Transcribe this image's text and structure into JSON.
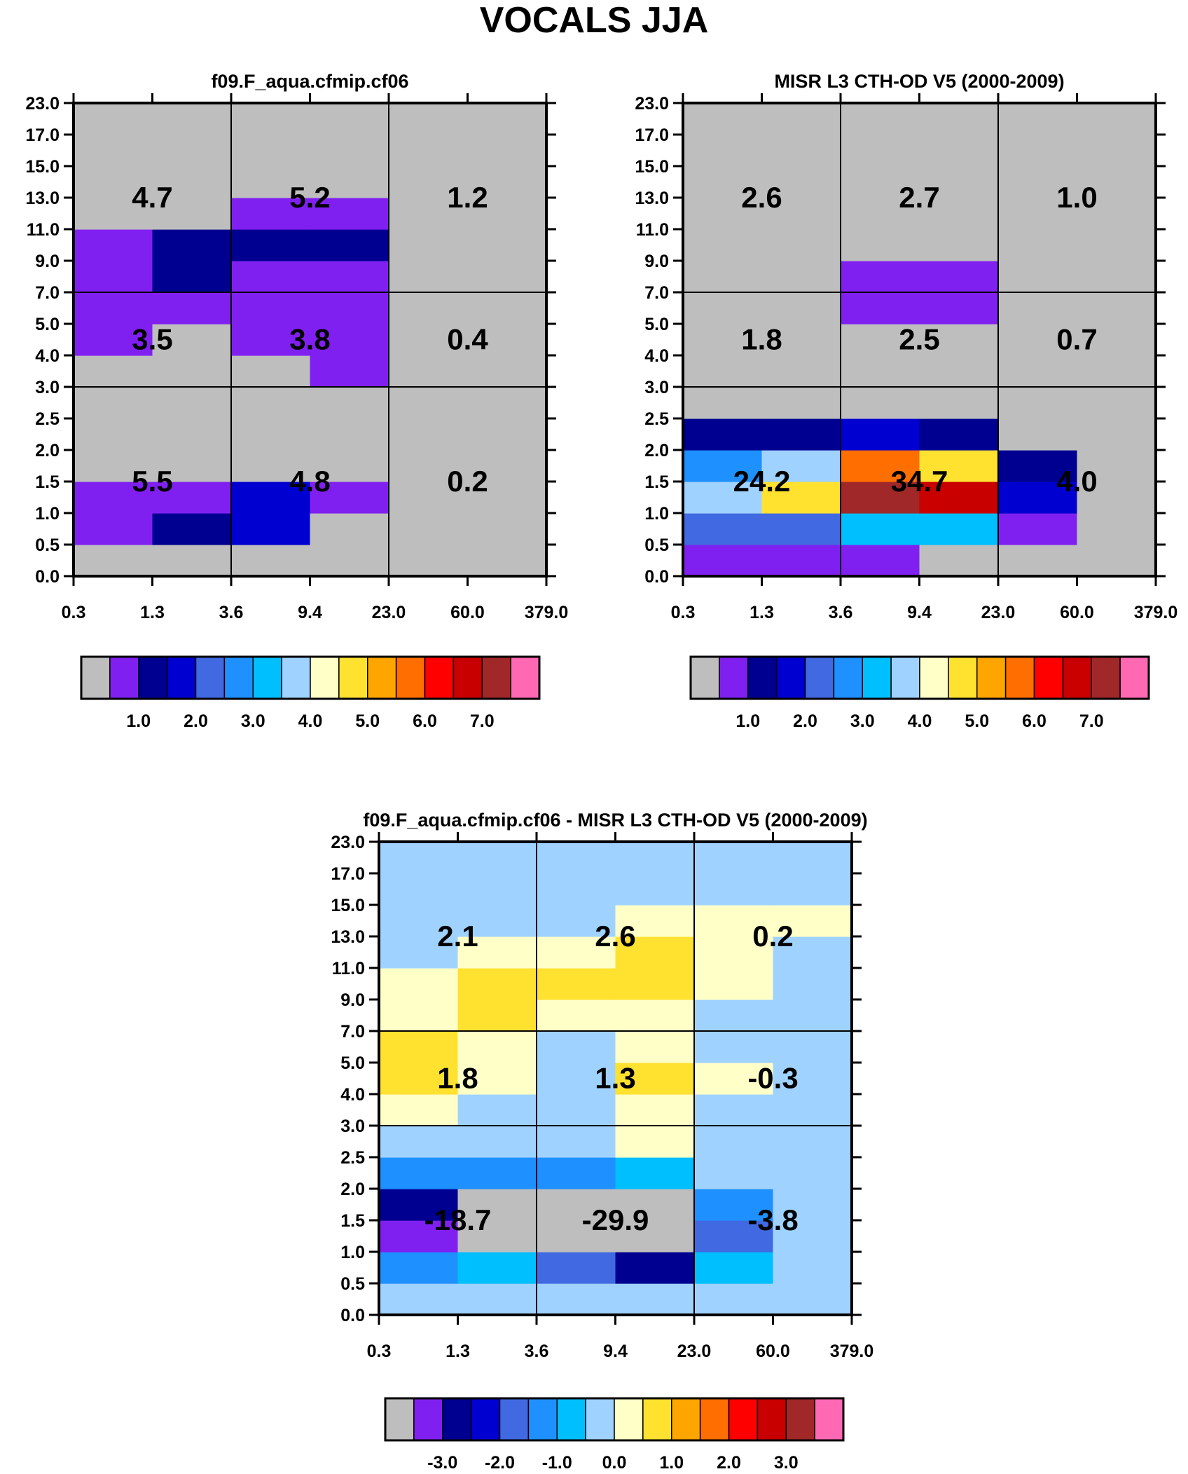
{
  "title": "VOCALS JJA",
  "colors": {
    "cbar_main": [
      "#bebebe",
      "#8020f0",
      "#000090",
      "#0000d0",
      "#4169e1",
      "#1e90ff",
      "#00bfff",
      "#a0d2ff",
      "#ffffc8",
      "#ffe130",
      "#ffa500",
      "#ff6e00",
      "#ff0000",
      "#c80000",
      "#a02828",
      "#ff69b4"
    ],
    "cbar_diff": [
      "#bebebe",
      "#8020f0",
      "#000090",
      "#0000d0",
      "#4169e1",
      "#1e90ff",
      "#00bfff",
      "#a0d2ff",
      "#ffffc8",
      "#ffe130",
      "#ffa500",
      "#ff6e00",
      "#ff0000",
      "#c80000",
      "#a02828",
      "#ff69b4"
    ]
  },
  "chart_data": [
    {
      "type": "heatmap",
      "title": "f09.F_aqua.cfmip.cf06",
      "x_tick_labels": [
        "0.3",
        "1.3",
        "3.6",
        "9.4",
        "23.0",
        "60.0",
        "379.0"
      ],
      "y_tick_labels": [
        "0.0",
        "0.5",
        "1.0",
        "1.5",
        "2.0",
        "2.5",
        "3.0",
        "4.0",
        "5.0",
        "7.0",
        "9.0",
        "11.0",
        "13.0",
        "15.0",
        "17.0",
        "23.0"
      ],
      "cells_note": "rows listed bottom (0.0-0.5) to top (17.0-23.0); values are color-bin indices into colors.cbar_main",
      "cells": [
        [
          0,
          0,
          0,
          0,
          0,
          0
        ],
        [
          1,
          2,
          3,
          0,
          0,
          0
        ],
        [
          1,
          1,
          3,
          1,
          0,
          0
        ],
        [
          0,
          0,
          0,
          0,
          0,
          0
        ],
        [
          0,
          0,
          0,
          0,
          0,
          0
        ],
        [
          0,
          0,
          0,
          0,
          0,
          0
        ],
        [
          0,
          0,
          0,
          1,
          0,
          0
        ],
        [
          1,
          0,
          1,
          1,
          0,
          0
        ],
        [
          1,
          1,
          1,
          1,
          0,
          0
        ],
        [
          1,
          2,
          1,
          1,
          0,
          0
        ],
        [
          1,
          2,
          2,
          2,
          0,
          0
        ],
        [
          0,
          0,
          1,
          1,
          0,
          0
        ],
        [
          0,
          0,
          0,
          0,
          0,
          0
        ],
        [
          0,
          0,
          0,
          0,
          0,
          0
        ],
        [
          0,
          0,
          0,
          0,
          0,
          0
        ]
      ],
      "annotations": [
        {
          "label": "4.7",
          "col": 0,
          "row": 0
        },
        {
          "label": "5.2",
          "col": 1,
          "row": 0
        },
        {
          "label": "1.2",
          "col": 2,
          "row": 0
        },
        {
          "label": "3.5",
          "col": 0,
          "row": 1
        },
        {
          "label": "3.8",
          "col": 1,
          "row": 1
        },
        {
          "label": "0.4",
          "col": 2,
          "row": 1
        },
        {
          "label": "5.5",
          "col": 0,
          "row": 2
        },
        {
          "label": "4.8",
          "col": 1,
          "row": 2
        },
        {
          "label": "0.2",
          "col": 2,
          "row": 2
        }
      ],
      "colorbar_ticks": [
        "1.0",
        "2.0",
        "3.0",
        "4.0",
        "5.0",
        "6.0",
        "7.0"
      ]
    },
    {
      "type": "heatmap",
      "title": "MISR L3 CTH-OD V5 (2000-2009)",
      "x_tick_labels": [
        "0.3",
        "1.3",
        "3.6",
        "9.4",
        "23.0",
        "60.0",
        "379.0"
      ],
      "y_tick_labels": [
        "0.0",
        "0.5",
        "1.0",
        "1.5",
        "2.0",
        "2.5",
        "3.0",
        "4.0",
        "5.0",
        "7.0",
        "9.0",
        "11.0",
        "13.0",
        "15.0",
        "17.0",
        "23.0"
      ],
      "cells_note": "rows listed bottom to top; values are color-bin indices into colors.cbar_main",
      "cells": [
        [
          1,
          1,
          1,
          0,
          0,
          0
        ],
        [
          4,
          4,
          6,
          6,
          1,
          0
        ],
        [
          7,
          9,
          14,
          13,
          3,
          0
        ],
        [
          5,
          7,
          11,
          9,
          2,
          0
        ],
        [
          2,
          2,
          3,
          2,
          0,
          0
        ],
        [
          0,
          0,
          0,
          0,
          0,
          0
        ],
        [
          0,
          0,
          0,
          0,
          0,
          0
        ],
        [
          0,
          0,
          0,
          0,
          0,
          0
        ],
        [
          0,
          0,
          1,
          1,
          0,
          0
        ],
        [
          0,
          0,
          1,
          1,
          0,
          0
        ],
        [
          0,
          0,
          0,
          0,
          0,
          0
        ],
        [
          0,
          0,
          0,
          0,
          0,
          0
        ],
        [
          0,
          0,
          0,
          0,
          0,
          0
        ],
        [
          0,
          0,
          0,
          0,
          0,
          0
        ],
        [
          0,
          0,
          0,
          0,
          0,
          0
        ]
      ],
      "annotations": [
        {
          "label": "2.6",
          "col": 0,
          "row": 0
        },
        {
          "label": "2.7",
          "col": 1,
          "row": 0
        },
        {
          "label": "1.0",
          "col": 2,
          "row": 0
        },
        {
          "label": "1.8",
          "col": 0,
          "row": 1
        },
        {
          "label": "2.5",
          "col": 1,
          "row": 1
        },
        {
          "label": "0.7",
          "col": 2,
          "row": 1
        },
        {
          "label": "24.2",
          "col": 0,
          "row": 2
        },
        {
          "label": "34.7",
          "col": 1,
          "row": 2
        },
        {
          "label": "4.0",
          "col": 2,
          "row": 2
        }
      ],
      "colorbar_ticks": [
        "1.0",
        "2.0",
        "3.0",
        "4.0",
        "5.0",
        "6.0",
        "7.0"
      ]
    },
    {
      "type": "heatmap",
      "title": "f09.F_aqua.cfmip.cf06 - MISR L3 CTH-OD V5 (2000-2009)",
      "x_tick_labels": [
        "0.3",
        "1.3",
        "3.6",
        "9.4",
        "23.0",
        "60.0",
        "379.0"
      ],
      "y_tick_labels": [
        "0.0",
        "0.5",
        "1.0",
        "1.5",
        "2.0",
        "2.5",
        "3.0",
        "4.0",
        "5.0",
        "7.0",
        "9.0",
        "11.0",
        "13.0",
        "15.0",
        "17.0",
        "23.0"
      ],
      "cells_note": "rows listed bottom to top; values are color-bin indices into colors.cbar_diff",
      "cells": [
        [
          7,
          7,
          7,
          7,
          7,
          7
        ],
        [
          5,
          6,
          4,
          2,
          6,
          7
        ],
        [
          1,
          0,
          0,
          0,
          4,
          7
        ],
        [
          2,
          0,
          0,
          0,
          5,
          7
        ],
        [
          5,
          5,
          5,
          6,
          7,
          7
        ],
        [
          7,
          7,
          7,
          8,
          7,
          7
        ],
        [
          8,
          7,
          7,
          8,
          7,
          7
        ],
        [
          9,
          8,
          7,
          9,
          8,
          7
        ],
        [
          9,
          8,
          7,
          8,
          7,
          7
        ],
        [
          8,
          9,
          8,
          8,
          7,
          7
        ],
        [
          8,
          9,
          9,
          9,
          8,
          7
        ],
        [
          7,
          8,
          8,
          9,
          8,
          7
        ],
        [
          7,
          7,
          7,
          8,
          8,
          8
        ],
        [
          7,
          7,
          7,
          7,
          7,
          7
        ],
        [
          7,
          7,
          7,
          7,
          7,
          7
        ]
      ],
      "annotations": [
        {
          "label": "2.1",
          "col": 0,
          "row": 0
        },
        {
          "label": "2.6",
          "col": 1,
          "row": 0
        },
        {
          "label": "0.2",
          "col": 2,
          "row": 0
        },
        {
          "label": "1.8",
          "col": 0,
          "row": 1
        },
        {
          "label": "1.3",
          "col": 1,
          "row": 1
        },
        {
          "label": "-0.3",
          "col": 2,
          "row": 1
        },
        {
          "label": "-18.7",
          "col": 0,
          "row": 2
        },
        {
          "label": "-29.9",
          "col": 1,
          "row": 2
        },
        {
          "label": "-3.8",
          "col": 2,
          "row": 2
        }
      ],
      "colorbar_ticks": [
        "-3.0",
        "-2.0",
        "-1.0",
        "0.0",
        "1.0",
        "2.0",
        "3.0"
      ]
    }
  ]
}
